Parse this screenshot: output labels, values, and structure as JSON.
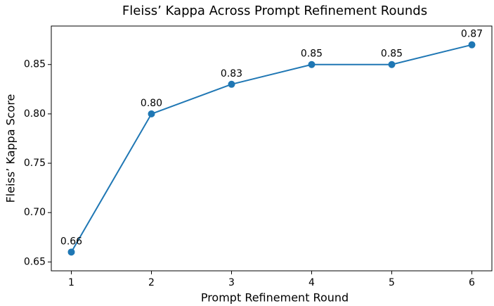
{
  "chart_data": {
    "type": "line",
    "title": "Fleiss’ Kappa Across Prompt Refinement Rounds",
    "xlabel": "Prompt Refinement Round",
    "ylabel": "Fleiss’ Kappa Score",
    "x": [
      1,
      2,
      3,
      4,
      5,
      6
    ],
    "series": [
      {
        "name": "Fleiss’ Kappa",
        "color": "#1f77b4",
        "values": [
          0.66,
          0.8,
          0.83,
          0.85,
          0.85,
          0.87
        ],
        "value_labels": [
          "0.66",
          "0.80",
          "0.83",
          "0.85",
          "0.85",
          "0.87"
        ]
      }
    ],
    "xlim": [
      0.75,
      6.25
    ],
    "xticks": [
      1,
      2,
      3,
      4,
      5,
      6
    ],
    "ylim": [
      0.641,
      0.889
    ],
    "yticks": [
      0.65,
      {
        "value": 0.7,
        "label": "0.70"
      },
      0.75,
      {
        "value": 0.8,
        "label": "0.80"
      },
      0.85
    ],
    "grid": false
  }
}
